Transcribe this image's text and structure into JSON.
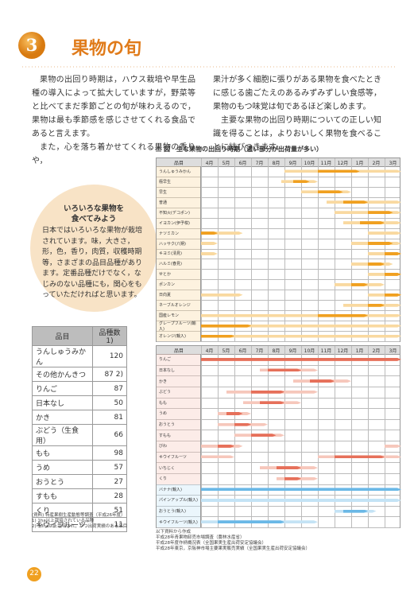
{
  "header": {
    "number": "3",
    "title": "果物の旬"
  },
  "intro": {
    "left": [
      "果物の出回り時期は，ハウス栽培や早生品種の導入によって拡大していますが，野菜等と比べてまだ季節ごとの旬が味わえるので，果物は最も季節感を感じさせてくれる食品であると言えます。",
      "また，心を落ち着かせてくれる果物の香りや，"
    ],
    "right": [
      "果汁が多く細胞に張りがある果物を食べたときに感じる歯ごたえのあるみずみずしい食感等，果物のもつ味覚は旬であるほど楽しめます。",
      "主要な果物の出回り時期についての正しい知識を得ることは，よりおいしく果物を食べることに結びつきます。"
    ]
  },
  "column": {
    "title": "いろいろな果物を\n食べてみよう",
    "text": "日本ではいろいろな果物が栽培されています。味，大きさ，形，色，香り，肉質，収穫時期等，さまざまの品目品種があります。定番品種だけでなく，なじみのない品種にも，関心をもっていただければと思います。"
  },
  "table": {
    "header": [
      "品目",
      "品種数1)"
    ],
    "rows": [
      [
        "うんしゅうみかん",
        "120"
      ],
      [
        "その他かんきつ",
        "87 2)"
      ],
      [
        "りんご",
        "87"
      ],
      [
        "日本なし",
        "50"
      ],
      [
        "かき",
        "81"
      ],
      [
        "ぶどう（生食用）",
        "66"
      ],
      [
        "もも",
        "98"
      ],
      [
        "うめ",
        "57"
      ],
      [
        "おうとう",
        "27"
      ],
      [
        "すもも",
        "28"
      ],
      [
        "くり",
        "51"
      ],
      [
        "キウイフルーツ",
        "11"
      ]
    ],
    "notes": [
      "(資料) 特産果樹生産動態等調査（平成26年度）",
      "1) 1ha以上栽培されている品種",
      "2) 50ha以上栽培され，かつ出荷実績のある品目"
    ]
  },
  "figure": {
    "title": "図　主な果物の出回り時期（濃い部分が出荷量が多い）",
    "item_header": "品目",
    "months": [
      "4月",
      "5月",
      "6月",
      "7月",
      "8月",
      "9月",
      "10月",
      "11月",
      "12月",
      "1月",
      "2月",
      "3月"
    ],
    "charts": [
      {
        "color": "#f0a020",
        "light": "#f9d9a0",
        "rows": [
          {
            "name": "うんしゅうみかん",
            "segments": [
              {
                "from": 5,
                "to": 12,
                "peak": false
              },
              {
                "from": 7,
                "to": 9.5,
                "peak": true
              }
            ]
          },
          {
            "name": "極早生",
            "segments": [
              {
                "from": 4.8,
                "to": 7,
                "peak": false
              },
              {
                "from": 5.5,
                "to": 6.5,
                "peak": true
              }
            ]
          },
          {
            "name": "早生",
            "segments": [
              {
                "from": 6,
                "to": 9,
                "peak": false
              },
              {
                "from": 7,
                "to": 8.5,
                "peak": true
              }
            ]
          },
          {
            "name": "普通",
            "segments": [
              {
                "from": 7.5,
                "to": 12,
                "peak": false
              },
              {
                "from": 8.5,
                "to": 10,
                "peak": true
              }
            ]
          },
          {
            "name": "不知火(デコポン)",
            "segments": [
              {
                "from": 8,
                "to": 12,
                "peak": false
              },
              {
                "from": 10,
                "to": 11.5,
                "peak": true
              }
            ]
          },
          {
            "name": "イヨカン(伊予柑)",
            "segments": [
              {
                "from": 8.5,
                "to": 12,
                "peak": false
              },
              {
                "from": 9.5,
                "to": 11,
                "peak": true
              }
            ]
          },
          {
            "name": "ナツミカン",
            "segments": [
              {
                "from": 0,
                "to": 2.5,
                "peak": false
              },
              {
                "from": 0,
                "to": 1,
                "peak": true
              },
              {
                "from": 10,
                "to": 12,
                "peak": false
              }
            ]
          },
          {
            "name": "ハッサク(八朔)",
            "segments": [
              {
                "from": 0,
                "to": 1,
                "peak": false
              },
              {
                "from": 9,
                "to": 12,
                "peak": false
              },
              {
                "from": 10,
                "to": 11.5,
                "peak": true
              }
            ]
          },
          {
            "name": "キヨミ(清見)",
            "segments": [
              {
                "from": 0,
                "to": 1,
                "peak": false
              },
              {
                "from": 10,
                "to": 12,
                "peak": false
              },
              {
                "from": 11,
                "to": 12,
                "peak": true
              }
            ]
          },
          {
            "name": "ハルミ(春見)",
            "segments": [
              {
                "from": 9,
                "to": 11.5,
                "peak": false
              },
              {
                "from": 10,
                "to": 11,
                "peak": true
              }
            ]
          },
          {
            "name": "せとか",
            "segments": [
              {
                "from": 10,
                "to": 12,
                "peak": false
              },
              {
                "from": 11,
                "to": 12,
                "peak": true
              }
            ]
          },
          {
            "name": "ポンカン",
            "segments": [
              {
                "from": 8,
                "to": 11,
                "peak": false
              },
              {
                "from": 9,
                "to": 10,
                "peak": true
              }
            ]
          },
          {
            "name": "日向夏",
            "segments": [
              {
                "from": 0,
                "to": 2.5,
                "peak": false
              },
              {
                "from": 10,
                "to": 12,
                "peak": false
              },
              {
                "from": 11,
                "to": 12,
                "peak": true
              }
            ]
          },
          {
            "name": "ネーブルオレンジ",
            "segments": [
              {
                "from": 8.5,
                "to": 12,
                "peak": false
              },
              {
                "from": 10,
                "to": 11,
                "peak": true
              }
            ]
          },
          {
            "name": "国産レモン",
            "segments": [
              {
                "from": 0,
                "to": 12,
                "peak": false
              },
              {
                "from": 7,
                "to": 10,
                "peak": true
              }
            ]
          },
          {
            "name": "グレープフルーツ(輸入)",
            "segments": [
              {
                "from": 0,
                "to": 12,
                "peak": false
              },
              {
                "from": 0,
                "to": 3,
                "peak": true
              }
            ]
          },
          {
            "name": "オレンジ(輸入)",
            "segments": [
              {
                "from": 0,
                "to": 12,
                "peak": false
              },
              {
                "from": 0,
                "to": 2,
                "peak": true
              }
            ]
          }
        ]
      },
      {
        "color": "#e6705a",
        "light": "#f6c7bb",
        "rows": [
          {
            "name": "りんご",
            "segments": [
              {
                "from": 0,
                "to": 12,
                "peak": true
              }
            ]
          },
          {
            "name": "日本なし",
            "segments": [
              {
                "from": 3.5,
                "to": 7,
                "peak": false
              },
              {
                "from": 4,
                "to": 6,
                "peak": true
              }
            ]
          },
          {
            "name": "かき",
            "segments": [
              {
                "from": 5.5,
                "to": 9,
                "peak": false
              },
              {
                "from": 6.5,
                "to": 8,
                "peak": true
              }
            ]
          },
          {
            "name": "ぶどう",
            "segments": [
              {
                "from": 1.5,
                "to": 7,
                "peak": false
              },
              {
                "from": 3,
                "to": 5,
                "peak": true
              }
            ]
          },
          {
            "name": "もも",
            "segments": [
              {
                "from": 2.5,
                "to": 6,
                "peak": false
              },
              {
                "from": 3.5,
                "to": 5,
                "peak": true
              }
            ]
          },
          {
            "name": "うめ",
            "segments": [
              {
                "from": 1,
                "to": 3,
                "peak": false
              },
              {
                "from": 1.5,
                "to": 2.5,
                "peak": true
              }
            ]
          },
          {
            "name": "おうとう",
            "segments": [
              {
                "from": 1,
                "to": 4,
                "peak": false
              },
              {
                "from": 2,
                "to": 3,
                "peak": true
              }
            ]
          },
          {
            "name": "すもも",
            "segments": [
              {
                "from": 2,
                "to": 5,
                "peak": false
              },
              {
                "from": 3,
                "to": 4.5,
                "peak": true
              }
            ]
          },
          {
            "name": "びわ",
            "segments": [
              {
                "from": 0,
                "to": 2.5,
                "peak": false
              },
              {
                "from": 1,
                "to": 2,
                "peak": true
              },
              {
                "from": 11,
                "to": 12,
                "peak": false
              }
            ]
          },
          {
            "name": "キウイフルーツ",
            "segments": [
              {
                "from": 0,
                "to": 2,
                "peak": false
              },
              {
                "from": 7,
                "to": 12,
                "peak": false
              },
              {
                "from": 8,
                "to": 11,
                "peak": true
              }
            ]
          },
          {
            "name": "いちじく",
            "segments": [
              {
                "from": 3.5,
                "to": 7,
                "peak": false
              },
              {
                "from": 4.5,
                "to": 6,
                "peak": true
              }
            ]
          },
          {
            "name": "くり",
            "segments": [
              {
                "from": 4.5,
                "to": 7,
                "peak": false
              },
              {
                "from": 5,
                "to": 6,
                "peak": true
              }
            ]
          },
          {
            "name": "バナナ(輸入)",
            "color": "#6ab8e6",
            "light": "#c4e3f5",
            "segments": [
              {
                "from": 0,
                "to": 12,
                "peak": true
              }
            ]
          },
          {
            "name": "パインアップル(輸入)",
            "color": "#6ab8e6",
            "light": "#c4e3f5",
            "segments": [
              {
                "from": 0,
                "to": 12,
                "peak": false
              }
            ]
          },
          {
            "name": "おうとう(輸入)",
            "color": "#6ab8e6",
            "light": "#c4e3f5",
            "segments": [
              {
                "from": 8,
                "to": 10.5,
                "peak": false
              },
              {
                "from": 8.5,
                "to": 10,
                "peak": true
              }
            ]
          },
          {
            "name": "キウイフルーツ(輸入)",
            "color": "#6ab8e6",
            "light": "#c4e3f5",
            "segments": [
              {
                "from": 0,
                "to": 7,
                "peak": false
              },
              {
                "from": 1,
                "to": 5,
                "peak": true
              }
            ]
          }
        ]
      }
    ],
    "sources": [
      "以下資料から作成",
      "平成28年青果物卸売市場調査（農林水産省）",
      "平成28年度作柄概況表（全国果実生産出荷安定協議会）",
      "平成28年東京，京阪神市場主要果実販売実績（全国果実生産出荷安定協議会）"
    ]
  },
  "footer": {
    "page": "22"
  }
}
